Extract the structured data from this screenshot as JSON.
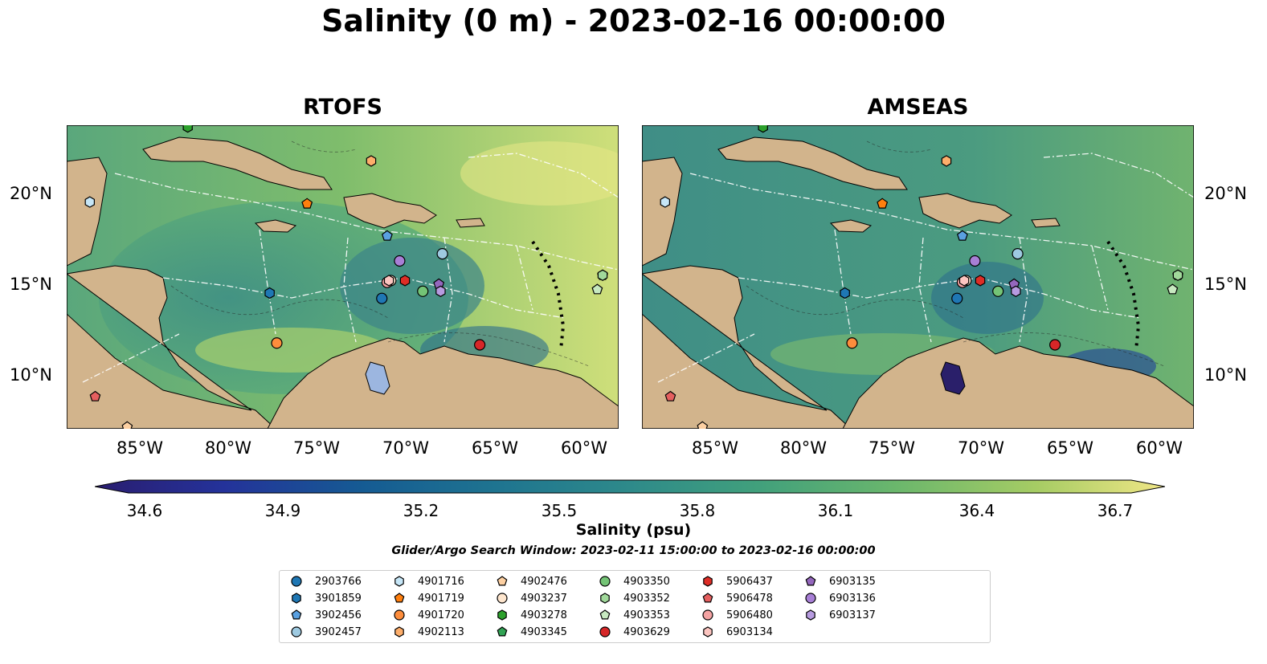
{
  "title": "Salinity (0 m) - 2023-02-16 00:00:00",
  "panels": [
    {
      "title": "RTOFS"
    },
    {
      "title": "AMSEAS"
    }
  ],
  "axes": {
    "lon_ticks": [
      "85°W",
      "80°W",
      "75°W",
      "70°W",
      "65°W",
      "60°W"
    ],
    "lat_ticks": [
      "20°N",
      "15°N",
      "10°N"
    ],
    "lon_range": [
      -89,
      -58
    ],
    "lat_range": [
      7,
      24
    ]
  },
  "colorbar": {
    "label": "Salinity (psu)",
    "ticks": [
      "34.6",
      "34.9",
      "35.2",
      "35.5",
      "35.8",
      "36.1",
      "36.4",
      "36.7"
    ],
    "range": [
      34.6,
      36.7
    ],
    "colormap": "haline",
    "extend": "both"
  },
  "search_window": "Glider/Argo Search Window: 2023-02-11 15:00:00 to 2023-02-16 00:00:00",
  "land_color": "#d2b48c",
  "platforms": [
    {
      "id": "2903766",
      "marker": "circle",
      "color": "#1f77b4",
      "lon": -71.3,
      "lat": 14.3
    },
    {
      "id": "3901859",
      "marker": "hexagon",
      "color": "#1f77b4",
      "lon": -77.6,
      "lat": 14.6
    },
    {
      "id": "3902456",
      "marker": "pentagon",
      "color": "#5aa0e0",
      "lon": -71.0,
      "lat": 17.8
    },
    {
      "id": "3902457",
      "marker": "circle",
      "color": "#9ecae1",
      "lon": -67.9,
      "lat": 16.8
    },
    {
      "id": "4901716",
      "marker": "hexagon",
      "color": "#c6e6f7",
      "lon": -87.7,
      "lat": 19.7
    },
    {
      "id": "4901719",
      "marker": "pentagon",
      "color": "#ff7f0e",
      "lon": -75.5,
      "lat": 19.6
    },
    {
      "id": "4901720",
      "marker": "circle",
      "color": "#fd8d3c",
      "lon": -77.2,
      "lat": 11.8
    },
    {
      "id": "4902113",
      "marker": "hexagon",
      "color": "#fdae6b",
      "lon": -71.9,
      "lat": 22.0
    },
    {
      "id": "4902476",
      "marker": "pentagon",
      "color": "#fdd0a2",
      "lon": -85.6,
      "lat": 7.1
    },
    {
      "id": "4903237",
      "marker": "circle",
      "color": "#fee6ce",
      "lon": -70.8,
      "lat": 15.3
    },
    {
      "id": "4903278",
      "marker": "hexagon",
      "color": "#2ca02c",
      "lon": -82.2,
      "lat": 23.9
    },
    {
      "id": "4903345",
      "marker": "pentagon",
      "color": "#31a354",
      "lon": -58.9,
      "lat": 15.6
    },
    {
      "id": "4903350",
      "marker": "circle",
      "color": "#74c476",
      "lon": -69.0,
      "lat": 14.7
    },
    {
      "id": "4903352",
      "marker": "hexagon",
      "color": "#a1d99b",
      "lon": -58.9,
      "lat": 15.6
    },
    {
      "id": "4903353",
      "marker": "pentagon",
      "color": "#c7e9c0",
      "lon": -59.2,
      "lat": 14.8
    },
    {
      "id": "4903629",
      "marker": "circle",
      "color": "#d62728",
      "lon": -65.8,
      "lat": 11.7
    },
    {
      "id": "5906437",
      "marker": "hexagon",
      "color": "#de2d26",
      "lon": -70.0,
      "lat": 15.3
    },
    {
      "id": "5906478",
      "marker": "pentagon",
      "color": "#e55f5f",
      "lon": -87.4,
      "lat": 8.8
    },
    {
      "id": "5906480",
      "marker": "circle",
      "color": "#f4a3a3",
      "lon": -71.0,
      "lat": 15.2
    },
    {
      "id": "6903134",
      "marker": "hexagon",
      "color": "#fcc5c0",
      "lon": -70.9,
      "lat": 15.3
    },
    {
      "id": "6903135",
      "marker": "pentagon",
      "color": "#9467bd",
      "lon": -68.1,
      "lat": 15.1
    },
    {
      "id": "6903136",
      "marker": "circle",
      "color": "#a87fd6",
      "lon": -70.3,
      "lat": 16.4
    },
    {
      "id": "6903137",
      "marker": "hexagon",
      "color": "#b79be0",
      "lon": -68.0,
      "lat": 14.7
    }
  ]
}
